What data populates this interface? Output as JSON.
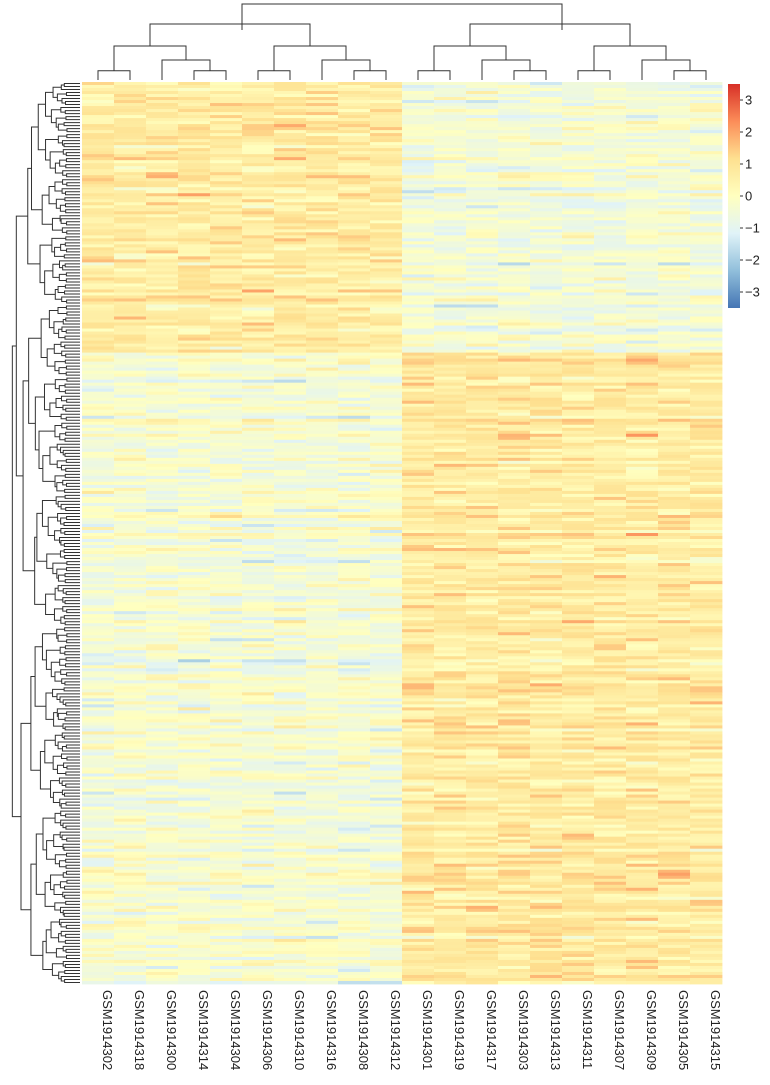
{
  "chart_data": {
    "type": "heatmap",
    "title": "",
    "xlabel": "",
    "ylabel": "",
    "columns": [
      "GSM1914302",
      "GSM1914318",
      "GSM1914300",
      "GSM1914314",
      "GSM1914304",
      "GSM1914306",
      "GSM1914310",
      "GSM1914316",
      "GSM1914308",
      "GSM1914312",
      "GSM1914301",
      "GSM1914319",
      "GSM1914317",
      "GSM1914303",
      "GSM1914313",
      "GSM1914311",
      "GSM1914307",
      "GSM1914309",
      "GSM1914305",
      "GSM1914315"
    ],
    "row_count": 300,
    "column_groups": [
      {
        "members": [
          0,
          1,
          2,
          3,
          4,
          5,
          6,
          7,
          8,
          9
        ],
        "trend": "higher in top block"
      },
      {
        "members": [
          10,
          11,
          12,
          13,
          14,
          15,
          16,
          17,
          18,
          19
        ],
        "trend": "higher in bottom block"
      }
    ],
    "color_scale": {
      "min": -3.5,
      "max": 3.5,
      "ticks": [
        3,
        2,
        1,
        0,
        -1,
        -2,
        -3
      ],
      "colors": [
        "#4575b4",
        "#91bfdb",
        "#e0f3f8",
        "#ffffbf",
        "#fee090",
        "#fc8d59",
        "#d73027"
      ]
    },
    "legend": "right",
    "row_dendrogram": true,
    "column_dendrogram": true
  }
}
